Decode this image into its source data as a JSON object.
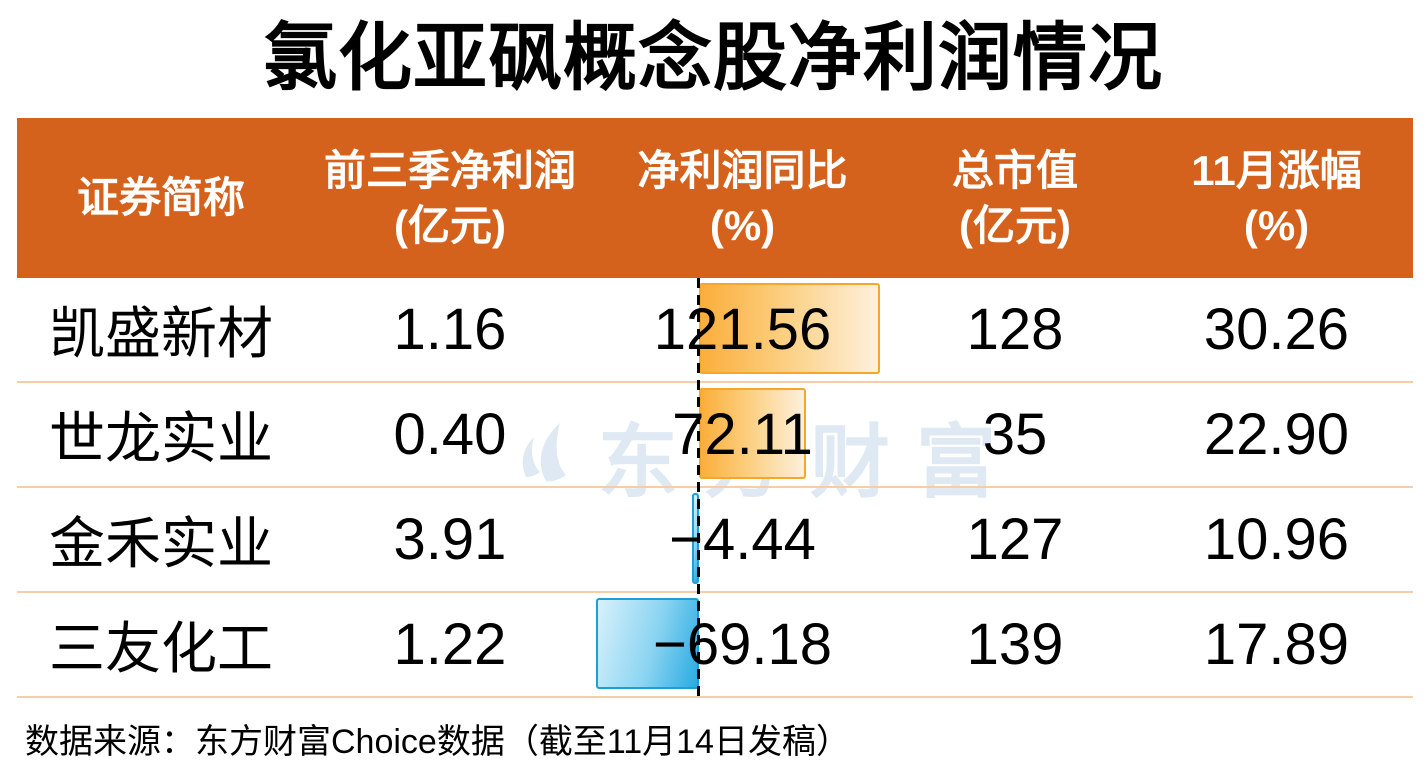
{
  "chart_data": {
    "type": "table",
    "title": "氯化亚砜概念股净利润情况",
    "columns": [
      {
        "label": "证券简称",
        "unit": ""
      },
      {
        "label": "前三季净利润",
        "unit": "(亿元)"
      },
      {
        "label": "净利润同比",
        "unit": "(%)"
      },
      {
        "label": "总市值",
        "unit": "(亿元)"
      },
      {
        "label": "11月涨幅",
        "unit": "(%)"
      }
    ],
    "bar_column": "净利润同比(%)",
    "bar_style": "positive bars orange gradient extending right of dashed zero line; negative bars blue gradient extending left",
    "rows": [
      {
        "name": "凯盛新材",
        "q3_profit": "1.16",
        "yoy": 121.56,
        "yoy_label": "121.56",
        "market_cap": "128",
        "nov_gain": "30.26"
      },
      {
        "name": "世龙实业",
        "q3_profit": "0.40",
        "yoy": 72.11,
        "yoy_label": "72.11",
        "market_cap": "35",
        "nov_gain": "22.90"
      },
      {
        "name": "金禾实业",
        "q3_profit": "3.91",
        "yoy": -4.44,
        "yoy_label": "−4.44",
        "market_cap": "127",
        "nov_gain": "10.96"
      },
      {
        "name": "三友化工",
        "q3_profit": "1.22",
        "yoy": -69.18,
        "yoy_label": "−69.18",
        "market_cap": "139",
        "nov_gain": "17.89"
      }
    ]
  },
  "watermark": {
    "text": "东方财富"
  },
  "source_note": "数据来源：东方财富Choice数据（截至11月14日发稿）",
  "colors": {
    "accent_orange": "#D5621C",
    "row_divider": "#F5CDA8",
    "bar_positive_start": "#FBAE3B",
    "bar_positive_end": "#FDF0DC",
    "bar_positive_border": "#F6A62B",
    "bar_negative_start": "#D8F1FC",
    "bar_negative_end": "#29ABE2",
    "bar_negative_border": "#1F9ED6",
    "watermark_color": "#DFE9F3",
    "header_text": "#FFFFFF",
    "text_color": "#000000"
  }
}
